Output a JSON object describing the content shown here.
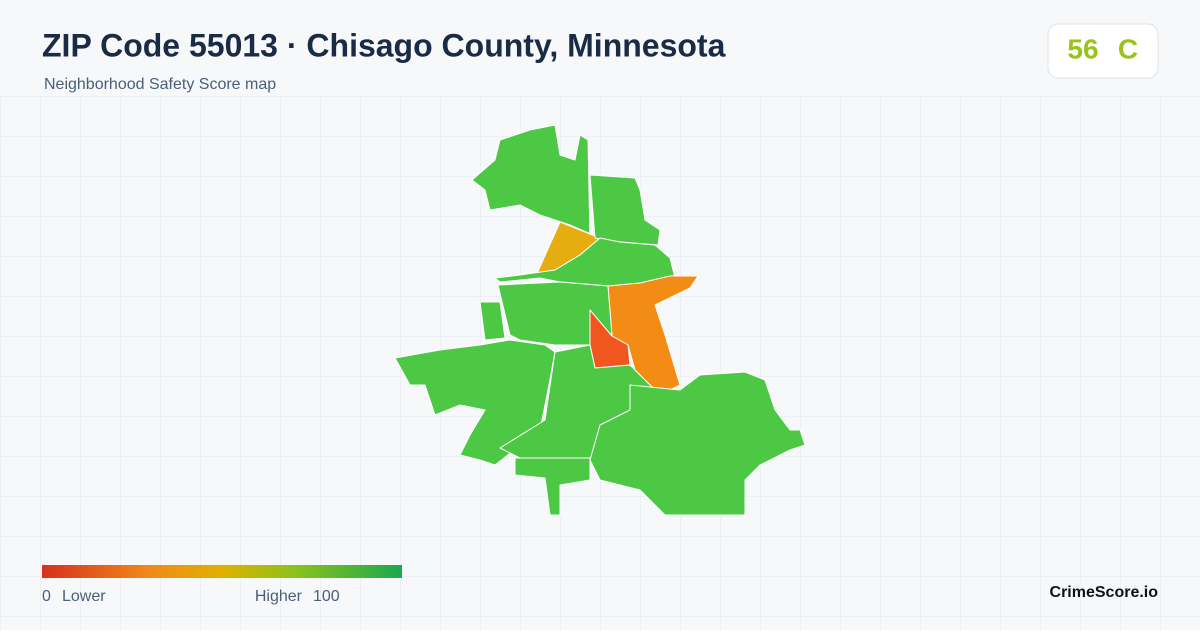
{
  "header": {
    "title": "ZIP Code 55013 · Chisago County, Minnesota",
    "subtitle": "Neighborhood Safety Score map"
  },
  "score": {
    "value": 56,
    "grade": "C"
  },
  "legend": {
    "min": 0,
    "min_label": "Lower",
    "max_label": "Higher",
    "max": 100
  },
  "brand": "CrimeScore.io"
}
